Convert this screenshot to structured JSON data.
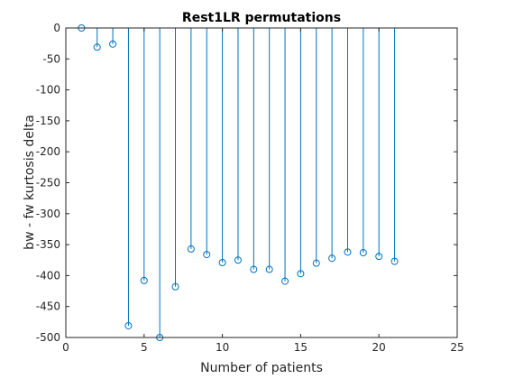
{
  "chart_data": {
    "type": "stem",
    "title": "Rest1LR permutations",
    "xlabel": "Number of patients",
    "ylabel": "bw - fw kurtosis delta",
    "xlim": [
      0,
      25
    ],
    "ylim": [
      -500,
      0
    ],
    "xticks": [
      0,
      5,
      10,
      15,
      20,
      25
    ],
    "yticks": [
      0,
      -50,
      -100,
      -150,
      -200,
      -250,
      -300,
      -350,
      -400,
      -450,
      -500
    ],
    "grid": false,
    "color": "#0072bd",
    "marker": "circle",
    "x": [
      1,
      2,
      3,
      4,
      5,
      6,
      7,
      8,
      9,
      10,
      11,
      12,
      13,
      14,
      15,
      16,
      17,
      18,
      19,
      20,
      21
    ],
    "y": [
      0,
      -31,
      -26,
      -481,
      -408,
      -500,
      -418,
      -357,
      -366,
      -379,
      -375,
      -390,
      -390,
      -409,
      -397,
      -380,
      -372,
      -362,
      -363,
      -369,
      -377
    ]
  }
}
